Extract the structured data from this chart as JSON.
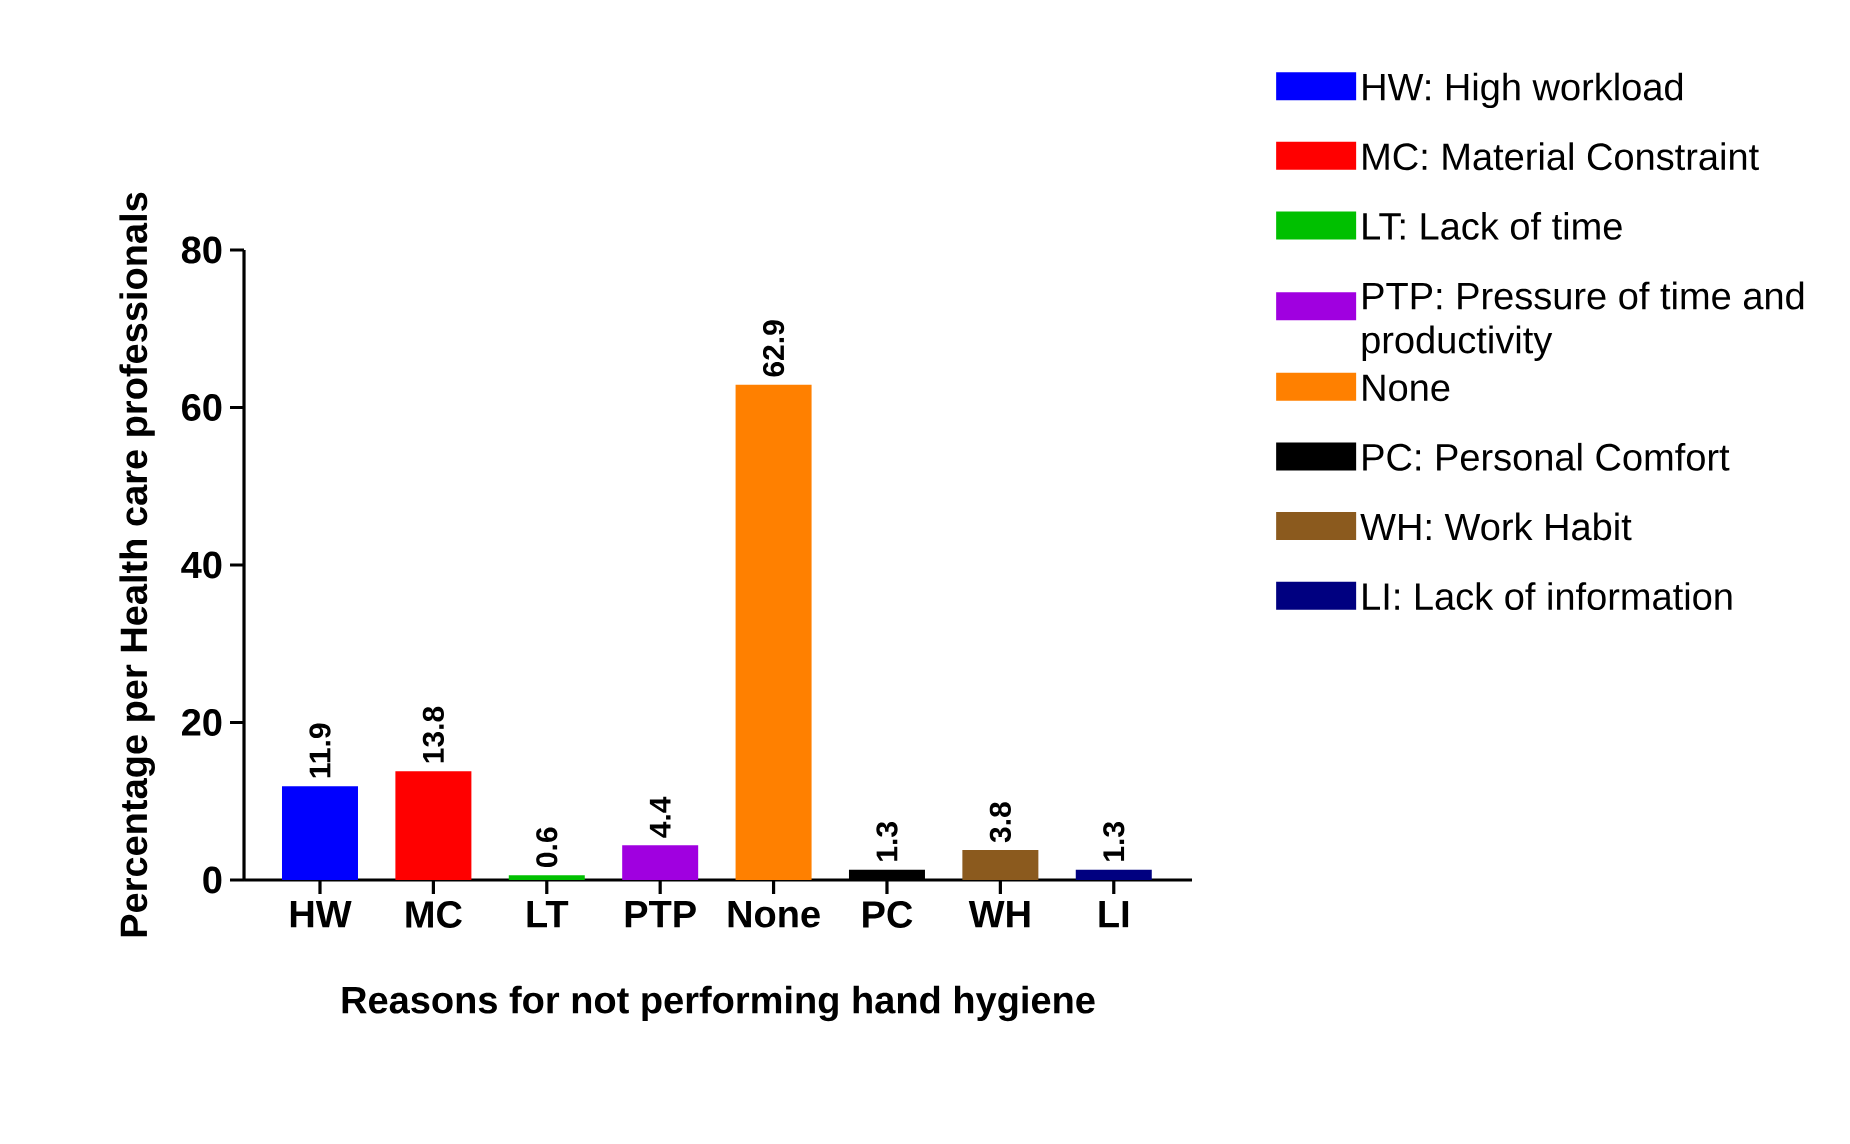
{
  "chart_data": {
    "type": "bar",
    "xlabel": "Reasons for not performing hand hygiene",
    "ylabel": "Percentage per Health care professionals",
    "categories": [
      "HW",
      "MC",
      "LT",
      "PTP",
      "None",
      "PC",
      "WH",
      "LI"
    ],
    "series": [
      {
        "name": "HW: High workload",
        "color": "#0000ff",
        "values": [
          11.9,
          null,
          null,
          null,
          null,
          null,
          null,
          null
        ]
      },
      {
        "name": "MC: Material Constraint",
        "color": "#ff0000",
        "values": [
          null,
          13.8,
          null,
          null,
          null,
          null,
          null,
          null
        ]
      },
      {
        "name": "LT: Lack of time",
        "color": "#00c000",
        "values": [
          null,
          null,
          0.6,
          null,
          null,
          null,
          null,
          null
        ]
      },
      {
        "name": "PTP: Pressure of time and productivity",
        "color": "#a000e0",
        "values": [
          null,
          null,
          null,
          4.4,
          null,
          null,
          null,
          null
        ]
      },
      {
        "name": "None",
        "color": "#ff8000",
        "values": [
          null,
          null,
          null,
          null,
          62.9,
          null,
          null,
          null
        ]
      },
      {
        "name": "PC: Personal Comfort",
        "color": "#000000",
        "values": [
          null,
          null,
          null,
          null,
          null,
          1.3,
          null,
          null
        ]
      },
      {
        "name": "WH: Work Habit",
        "color": "#8b5a1e",
        "values": [
          null,
          null,
          null,
          null,
          null,
          null,
          3.8,
          null
        ]
      },
      {
        "name": "LI: Lack of information",
        "color": "#000080",
        "values": [
          null,
          null,
          null,
          null,
          null,
          null,
          null,
          1.3
        ]
      }
    ],
    "ylim": [
      0,
      80
    ],
    "yticks": [
      0,
      20,
      40,
      60,
      80
    ],
    "data_labels": true,
    "legend": "right"
  }
}
